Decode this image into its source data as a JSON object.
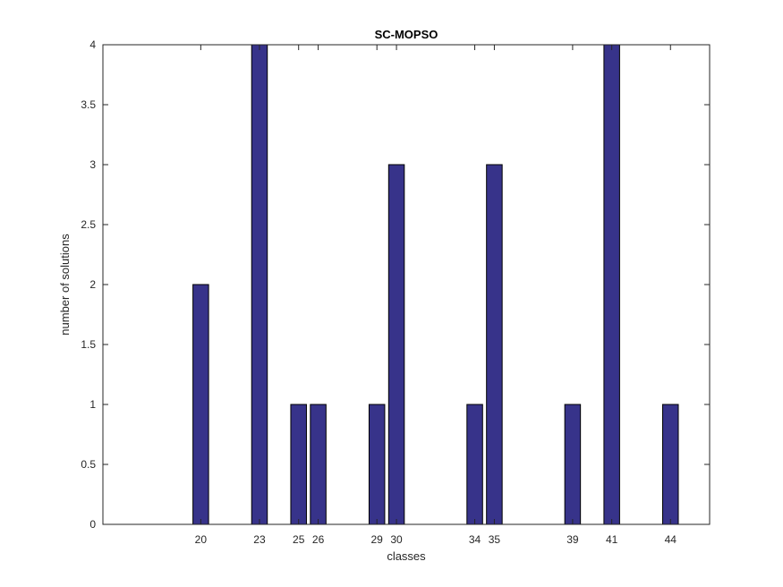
{
  "chart_data": {
    "type": "bar",
    "title": "SC-MOPSO",
    "xlabel": "classes",
    "ylabel": "number of solutions",
    "x": [
      20,
      23,
      25,
      26,
      29,
      30,
      34,
      35,
      39,
      41,
      44
    ],
    "values": [
      2,
      4,
      1,
      1,
      1,
      3,
      1,
      3,
      1,
      4,
      1
    ],
    "xlim": [
      15,
      46
    ],
    "ylim": [
      0,
      4
    ],
    "yticks": [
      0,
      0.5,
      1,
      1.5,
      2,
      2.5,
      3,
      3.5,
      4
    ],
    "ytick_labels": [
      "0",
      "0.5",
      "1",
      "1.5",
      "2",
      "2.5",
      "3",
      "3.5",
      "4"
    ],
    "xtick_labels": [
      "20",
      "23",
      "25",
      "26",
      "29",
      "30",
      "34",
      "35",
      "39",
      "41",
      "44"
    ],
    "grid": false,
    "legend": "none",
    "bar_color": "#37338a",
    "edge_color": "#000000"
  }
}
